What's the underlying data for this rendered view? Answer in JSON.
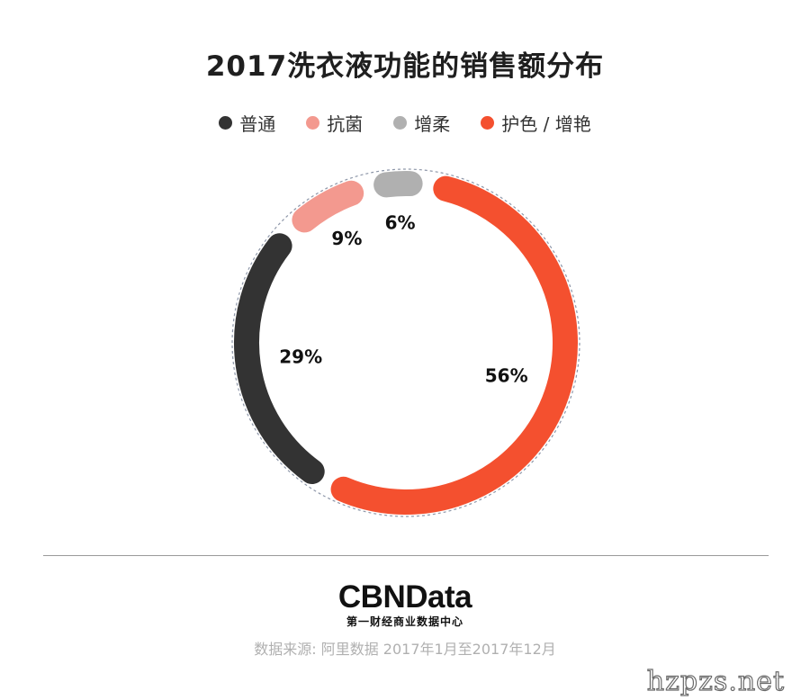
{
  "chart_data": {
    "type": "pie",
    "title": "2017洗衣液功能的销售额分布",
    "categories": [
      "普通",
      "抗菌",
      "增柔",
      "护色 / 增艳"
    ],
    "values": [
      29,
      9,
      6,
      56
    ],
    "labels": [
      "29%",
      "9%",
      "6%",
      "56%"
    ],
    "colors": [
      "#333333",
      "#f3998f",
      "#b0b0b0",
      "#f4502f"
    ],
    "legend_position": "top",
    "style": "donut"
  },
  "brand": {
    "logo": "CBNData",
    "tagline": "第一财经商业数据中心"
  },
  "source": "数据来源: 阿里数据 2017年1月至2017年12月",
  "watermark": "hzpzs.net"
}
